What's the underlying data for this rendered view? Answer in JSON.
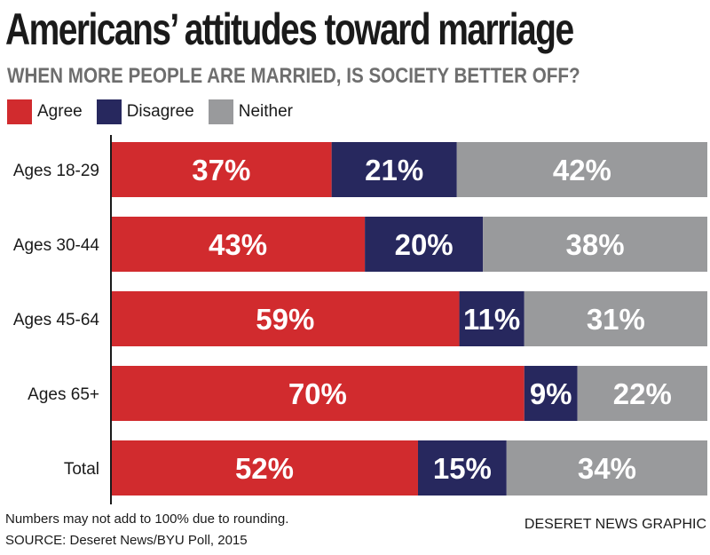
{
  "chart_data": {
    "type": "bar",
    "orientation": "horizontal",
    "stacked": true,
    "title": "Americans’ attitudes toward marriage",
    "subtitle": "WHEN MORE PEOPLE ARE MARRIED, IS SOCIETY BETTER OFF?",
    "categories": [
      "Ages 18-29",
      "Ages 30-44",
      "Ages 45-64",
      "Ages 65+",
      "Total"
    ],
    "series": [
      {
        "name": "Agree",
        "color": "#d12b2e",
        "values": [
          37,
          43,
          59,
          70,
          52
        ],
        "labels": [
          "37%",
          "43%",
          "59%",
          "70%",
          "52%"
        ]
      },
      {
        "name": "Disagree",
        "color": "#27285e",
        "values": [
          21,
          20,
          11,
          9,
          15
        ],
        "labels": [
          "21%",
          "20%",
          "11%",
          "9%",
          "15%"
        ]
      },
      {
        "name": "Neither",
        "color": "#999a9c",
        "values": [
          42,
          38,
          31,
          22,
          34
        ],
        "labels": [
          "42%",
          "38%",
          "31%",
          "22%",
          "34%"
        ]
      }
    ],
    "legend": "top-left",
    "grid": false
  },
  "notes": {
    "rounding": "Numbers may not add to 100% due to rounding.",
    "source": "SOURCE: Deseret News/BYU Poll, 2015",
    "credit": "DESERET NEWS GRAPHIC"
  }
}
